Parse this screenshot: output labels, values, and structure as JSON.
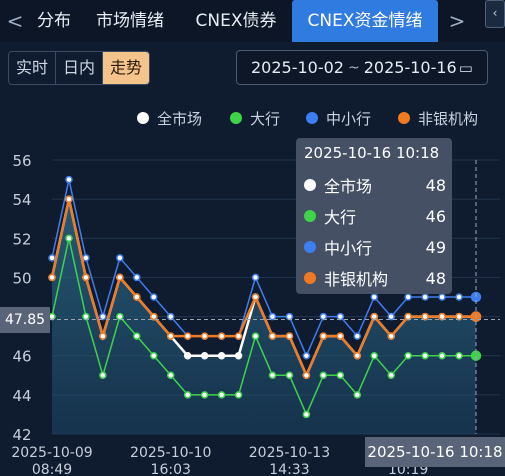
{
  "tabs": {
    "left_arrow": "<",
    "right_arrow": ">",
    "items": [
      "分布",
      "市场情绪",
      "CNEX债券",
      "CNEX资金情绪"
    ],
    "active_index": 3
  },
  "corner_icon": "chevron-left-icon",
  "period_selector": {
    "options": [
      "实时",
      "日内",
      "走势"
    ],
    "selected": "走势"
  },
  "date_range": {
    "start": "2025-10-02",
    "separator": "~",
    "end": "2025-10-16"
  },
  "legend": [
    {
      "name": "全市场",
      "color": "#ffffff"
    },
    {
      "name": "大行",
      "color": "#3fd34a"
    },
    {
      "name": "中小行",
      "color": "#3d7ef0"
    },
    {
      "name": "非银机构",
      "color": "#f07a22"
    }
  ],
  "tooltip": {
    "title": "2025-10-16 10:18",
    "rows": [
      {
        "name": "全市场",
        "value": "48",
        "color": "#ffffff"
      },
      {
        "name": "大行",
        "value": "46",
        "color": "#3fd34a"
      },
      {
        "name": "中小行",
        "value": "49",
        "color": "#3d7ef0"
      },
      {
        "name": "非银机构",
        "value": "48",
        "color": "#f07a22"
      }
    ]
  },
  "crosshair": {
    "y_label": "47.85",
    "x_label": "2025-10-16 10:18"
  },
  "chart_data": {
    "type": "line",
    "ylim": [
      42,
      56
    ],
    "y_ticks": [
      42,
      44,
      46,
      48,
      50,
      52,
      54,
      56
    ],
    "x_tick_labels": [
      {
        "date": "2025-10-09",
        "time": "08:49",
        "index": 0
      },
      {
        "date": "2025-10-10",
        "time": "16:03",
        "index": 7
      },
      {
        "date": "2025-10-13",
        "time": "14:33",
        "index": 14
      },
      {
        "date": "2025-10-16",
        "time": "10:19",
        "index": 21
      }
    ],
    "series": [
      {
        "name": "中小行",
        "color": "#3d7ef0",
        "values": [
          51,
          55,
          51,
          48,
          51,
          50,
          49,
          48,
          47,
          47,
          47,
          47,
          50,
          48,
          48,
          46,
          48,
          48,
          47,
          49,
          48,
          49,
          49,
          49,
          49,
          49
        ]
      },
      {
        "name": "大行",
        "color": "#3fd34a",
        "values": [
          48,
          52,
          48,
          45,
          48,
          47,
          46,
          45,
          44,
          44,
          44,
          44,
          47,
          45,
          45,
          43,
          45,
          45,
          44,
          46,
          45,
          46,
          46,
          46,
          46,
          46
        ]
      },
      {
        "name": "全市场",
        "color": "#ffffff",
        "values": [
          50,
          54,
          50,
          47,
          50,
          49,
          48,
          47,
          46,
          46,
          46,
          46,
          49,
          47,
          47,
          45,
          47,
          47,
          46,
          48,
          47,
          48,
          48,
          48,
          48,
          48
        ]
      },
      {
        "name": "非银机构",
        "color": "#f07a22",
        "values": [
          50,
          54,
          50,
          47,
          50,
          49,
          48,
          47,
          47,
          47,
          47,
          47,
          49,
          47,
          47,
          45,
          47,
          47,
          46,
          48,
          47,
          48,
          48,
          48,
          48,
          48
        ]
      }
    ]
  }
}
